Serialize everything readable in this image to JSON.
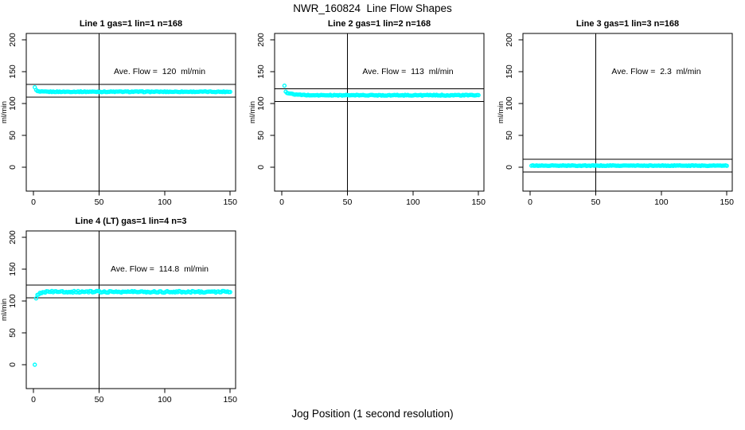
{
  "figure": {
    "title": "NWR_160824  Line Flow Shapes",
    "xlabel": "Jog Position (1 second resolution)",
    "ylabel": "ml/min",
    "background_color": "#ffffff",
    "line_color": "#000000",
    "point_color": "#00ffff"
  },
  "chart_data": [
    {
      "type": "scatter",
      "title": "Line 1 gas=1 lin=1 n=168",
      "annotation": "Ave. Flow =  120  ml/min",
      "ave_flow": 120,
      "n": 168,
      "ylabel": "ml/min",
      "xlim": [
        -5.5,
        154.1
      ],
      "ylim": [
        -37.5,
        210
      ],
      "x_ticks": [
        0,
        50,
        100,
        150
      ],
      "y_ticks": [
        0,
        50,
        100,
        150,
        200
      ],
      "ref_lines_y": [
        130,
        110
      ],
      "vline_x": 50,
      "annotation_pos": [
        96,
        148
      ],
      "marker": "open-circle",
      "color": "#00ffff",
      "series": {
        "x_start": 1,
        "x_end": 150,
        "start_value": 126,
        "steady_value": 118.5,
        "decay_tau": 0.9,
        "noise": 0.6
      },
      "extra_points": []
    },
    {
      "type": "scatter",
      "title": "Line 2 gas=1 lin=2 n=168",
      "annotation": "Ave. Flow =  113  ml/min",
      "ave_flow": 113,
      "n": 168,
      "ylabel": "ml/min",
      "xlim": [
        -5.5,
        154.1
      ],
      "ylim": [
        -37.5,
        210
      ],
      "x_ticks": [
        0,
        50,
        100,
        150
      ],
      "y_ticks": [
        0,
        50,
        100,
        150,
        200
      ],
      "ref_lines_y": [
        123,
        103
      ],
      "vline_x": 50,
      "annotation_pos": [
        96,
        148
      ],
      "marker": "open-circle",
      "color": "#00ffff",
      "series": {
        "x_start": 3,
        "x_end": 150,
        "start_value": 118,
        "steady_value": 113,
        "decay_tau": 5,
        "noise": 0.7
      },
      "extra_points": [
        [
          2,
          128
        ]
      ]
    },
    {
      "type": "scatter",
      "title": "Line 3 gas=1 lin=3 n=168",
      "annotation": "Ave. Flow =  2.3  ml/min",
      "ave_flow": 2.3,
      "n": 168,
      "ylabel": "ml/min",
      "xlim": [
        -5.5,
        154.1
      ],
      "ylim": [
        -37.5,
        210
      ],
      "x_ticks": [
        0,
        50,
        100,
        150
      ],
      "y_ticks": [
        0,
        50,
        100,
        150,
        200
      ],
      "ref_lines_y": [
        12.3,
        -7.7
      ],
      "vline_x": 50,
      "annotation_pos": [
        96,
        148
      ],
      "marker": "open-circle",
      "color": "#00ffff",
      "series": {
        "x_start": 1,
        "x_end": 150,
        "start_value": 2.5,
        "steady_value": 2.5,
        "decay_tau": 0,
        "noise": 0.55
      },
      "extra_points": []
    },
    {
      "type": "scatter",
      "title": "Line 4 (LT) gas=1 lin=4 n=3",
      "annotation": "Ave. Flow =  114.8  ml/min",
      "ave_flow": 114.8,
      "n": 3,
      "ylabel": "ml/min",
      "xlim": [
        -5.5,
        154.1
      ],
      "ylim": [
        -37.5,
        210
      ],
      "x_ticks": [
        0,
        50,
        100,
        150
      ],
      "y_ticks": [
        0,
        50,
        100,
        150,
        200
      ],
      "ref_lines_y": [
        124.8,
        104.8
      ],
      "vline_x": 50,
      "annotation_pos": [
        96,
        148
      ],
      "marker": "open-circle",
      "color": "#00ffff",
      "series": {
        "x_start": 2,
        "x_end": 150,
        "start_value": 104,
        "steady_value": 114.5,
        "decay_tau": 1.8,
        "noise": 1.3
      },
      "extra_points": [
        [
          1,
          0
        ]
      ]
    }
  ]
}
